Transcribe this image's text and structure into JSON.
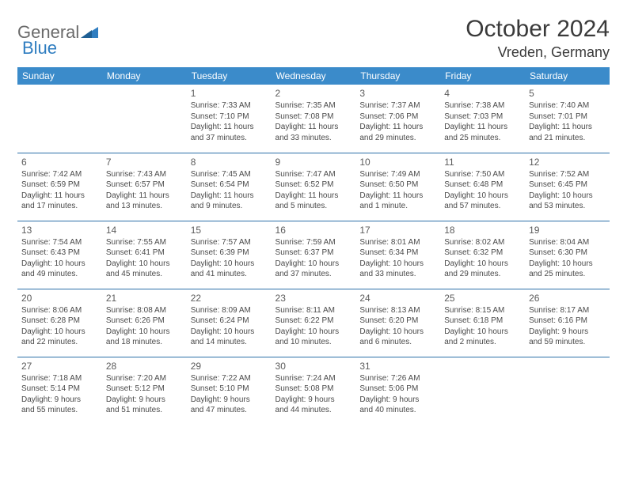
{
  "brand": {
    "part1": "General",
    "part2": "Blue"
  },
  "title": "October 2024",
  "location": "Vreden, Germany",
  "colors": {
    "header_bg": "#3b8bca",
    "header_text": "#ffffff",
    "row_border": "#2b6fa8",
    "body_text": "#4a4a4a",
    "logo_gray": "#6a6a6a",
    "logo_blue": "#2f7dc0",
    "page_bg": "#ffffff"
  },
  "weekdays": [
    "Sunday",
    "Monday",
    "Tuesday",
    "Wednesday",
    "Thursday",
    "Friday",
    "Saturday"
  ],
  "weeks": [
    [
      null,
      null,
      {
        "n": "1",
        "sr": "Sunrise: 7:33 AM",
        "ss": "Sunset: 7:10 PM",
        "d1": "Daylight: 11 hours",
        "d2": "and 37 minutes."
      },
      {
        "n": "2",
        "sr": "Sunrise: 7:35 AM",
        "ss": "Sunset: 7:08 PM",
        "d1": "Daylight: 11 hours",
        "d2": "and 33 minutes."
      },
      {
        "n": "3",
        "sr": "Sunrise: 7:37 AM",
        "ss": "Sunset: 7:06 PM",
        "d1": "Daylight: 11 hours",
        "d2": "and 29 minutes."
      },
      {
        "n": "4",
        "sr": "Sunrise: 7:38 AM",
        "ss": "Sunset: 7:03 PM",
        "d1": "Daylight: 11 hours",
        "d2": "and 25 minutes."
      },
      {
        "n": "5",
        "sr": "Sunrise: 7:40 AM",
        "ss": "Sunset: 7:01 PM",
        "d1": "Daylight: 11 hours",
        "d2": "and 21 minutes."
      }
    ],
    [
      {
        "n": "6",
        "sr": "Sunrise: 7:42 AM",
        "ss": "Sunset: 6:59 PM",
        "d1": "Daylight: 11 hours",
        "d2": "and 17 minutes."
      },
      {
        "n": "7",
        "sr": "Sunrise: 7:43 AM",
        "ss": "Sunset: 6:57 PM",
        "d1": "Daylight: 11 hours",
        "d2": "and 13 minutes."
      },
      {
        "n": "8",
        "sr": "Sunrise: 7:45 AM",
        "ss": "Sunset: 6:54 PM",
        "d1": "Daylight: 11 hours",
        "d2": "and 9 minutes."
      },
      {
        "n": "9",
        "sr": "Sunrise: 7:47 AM",
        "ss": "Sunset: 6:52 PM",
        "d1": "Daylight: 11 hours",
        "d2": "and 5 minutes."
      },
      {
        "n": "10",
        "sr": "Sunrise: 7:49 AM",
        "ss": "Sunset: 6:50 PM",
        "d1": "Daylight: 11 hours",
        "d2": "and 1 minute."
      },
      {
        "n": "11",
        "sr": "Sunrise: 7:50 AM",
        "ss": "Sunset: 6:48 PM",
        "d1": "Daylight: 10 hours",
        "d2": "and 57 minutes."
      },
      {
        "n": "12",
        "sr": "Sunrise: 7:52 AM",
        "ss": "Sunset: 6:45 PM",
        "d1": "Daylight: 10 hours",
        "d2": "and 53 minutes."
      }
    ],
    [
      {
        "n": "13",
        "sr": "Sunrise: 7:54 AM",
        "ss": "Sunset: 6:43 PM",
        "d1": "Daylight: 10 hours",
        "d2": "and 49 minutes."
      },
      {
        "n": "14",
        "sr": "Sunrise: 7:55 AM",
        "ss": "Sunset: 6:41 PM",
        "d1": "Daylight: 10 hours",
        "d2": "and 45 minutes."
      },
      {
        "n": "15",
        "sr": "Sunrise: 7:57 AM",
        "ss": "Sunset: 6:39 PM",
        "d1": "Daylight: 10 hours",
        "d2": "and 41 minutes."
      },
      {
        "n": "16",
        "sr": "Sunrise: 7:59 AM",
        "ss": "Sunset: 6:37 PM",
        "d1": "Daylight: 10 hours",
        "d2": "and 37 minutes."
      },
      {
        "n": "17",
        "sr": "Sunrise: 8:01 AM",
        "ss": "Sunset: 6:34 PM",
        "d1": "Daylight: 10 hours",
        "d2": "and 33 minutes."
      },
      {
        "n": "18",
        "sr": "Sunrise: 8:02 AM",
        "ss": "Sunset: 6:32 PM",
        "d1": "Daylight: 10 hours",
        "d2": "and 29 minutes."
      },
      {
        "n": "19",
        "sr": "Sunrise: 8:04 AM",
        "ss": "Sunset: 6:30 PM",
        "d1": "Daylight: 10 hours",
        "d2": "and 25 minutes."
      }
    ],
    [
      {
        "n": "20",
        "sr": "Sunrise: 8:06 AM",
        "ss": "Sunset: 6:28 PM",
        "d1": "Daylight: 10 hours",
        "d2": "and 22 minutes."
      },
      {
        "n": "21",
        "sr": "Sunrise: 8:08 AM",
        "ss": "Sunset: 6:26 PM",
        "d1": "Daylight: 10 hours",
        "d2": "and 18 minutes."
      },
      {
        "n": "22",
        "sr": "Sunrise: 8:09 AM",
        "ss": "Sunset: 6:24 PM",
        "d1": "Daylight: 10 hours",
        "d2": "and 14 minutes."
      },
      {
        "n": "23",
        "sr": "Sunrise: 8:11 AM",
        "ss": "Sunset: 6:22 PM",
        "d1": "Daylight: 10 hours",
        "d2": "and 10 minutes."
      },
      {
        "n": "24",
        "sr": "Sunrise: 8:13 AM",
        "ss": "Sunset: 6:20 PM",
        "d1": "Daylight: 10 hours",
        "d2": "and 6 minutes."
      },
      {
        "n": "25",
        "sr": "Sunrise: 8:15 AM",
        "ss": "Sunset: 6:18 PM",
        "d1": "Daylight: 10 hours",
        "d2": "and 2 minutes."
      },
      {
        "n": "26",
        "sr": "Sunrise: 8:17 AM",
        "ss": "Sunset: 6:16 PM",
        "d1": "Daylight: 9 hours",
        "d2": "and 59 minutes."
      }
    ],
    [
      {
        "n": "27",
        "sr": "Sunrise: 7:18 AM",
        "ss": "Sunset: 5:14 PM",
        "d1": "Daylight: 9 hours",
        "d2": "and 55 minutes."
      },
      {
        "n": "28",
        "sr": "Sunrise: 7:20 AM",
        "ss": "Sunset: 5:12 PM",
        "d1": "Daylight: 9 hours",
        "d2": "and 51 minutes."
      },
      {
        "n": "29",
        "sr": "Sunrise: 7:22 AM",
        "ss": "Sunset: 5:10 PM",
        "d1": "Daylight: 9 hours",
        "d2": "and 47 minutes."
      },
      {
        "n": "30",
        "sr": "Sunrise: 7:24 AM",
        "ss": "Sunset: 5:08 PM",
        "d1": "Daylight: 9 hours",
        "d2": "and 44 minutes."
      },
      {
        "n": "31",
        "sr": "Sunrise: 7:26 AM",
        "ss": "Sunset: 5:06 PM",
        "d1": "Daylight: 9 hours",
        "d2": "and 40 minutes."
      },
      null,
      null
    ]
  ]
}
